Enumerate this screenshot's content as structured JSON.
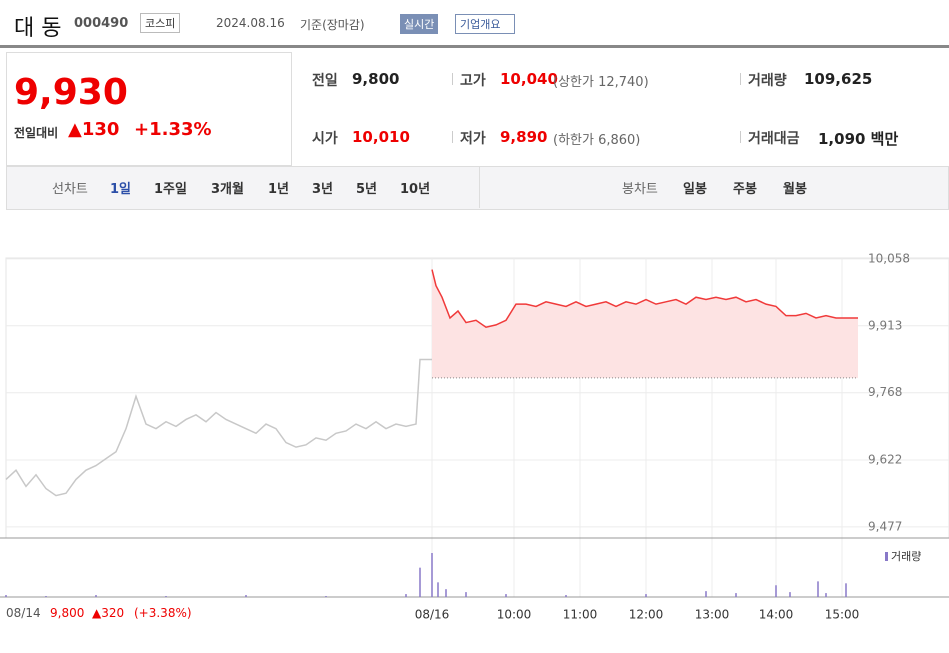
{
  "header": {
    "name": "대 동",
    "code": "000490",
    "market": "코스피",
    "date": "2024.08.16",
    "date_note": "기준(장마감)",
    "realtime": "실시간",
    "company": "기업개요"
  },
  "price": {
    "current": "9,930",
    "change_label": "전일대비",
    "change": "▲130",
    "change_pct": "+1.33%"
  },
  "info": [
    [
      "전일",
      "9,800"
    ],
    [
      "고가",
      "10,040",
      "(상한가 12,740)"
    ],
    [
      "거래량",
      "109,625"
    ],
    [
      "시가",
      "10,010"
    ],
    [
      "저가",
      "9,890",
      "(하한가 6,860)"
    ],
    [
      "거래대금",
      "1,090 백만"
    ]
  ],
  "tabs": {
    "line_label": "선차트",
    "line": [
      "1일",
      "1주일",
      "3개월",
      "1년",
      "3년",
      "5년",
      "10년"
    ],
    "candle_label": "봉차트",
    "candle": [
      "일봉",
      "주봉",
      "월봉"
    ]
  },
  "prev_day": {
    "date": "08/14",
    "close": "9,800",
    "change": "▲320",
    "pct": "(+3.38%)"
  },
  "chart_data": {
    "type": "line",
    "xlim": [
      0,
      426
    ],
    "xticks": [
      {
        "value": 213,
        "label": "08/16"
      },
      {
        "value": 254,
        "label": "10:00"
      },
      {
        "value": 287,
        "label": "11:00"
      },
      {
        "value": 320,
        "label": "12:00"
      },
      {
        "value": 353,
        "label": "13:00"
      },
      {
        "value": 385,
        "label": "14:00"
      },
      {
        "value": 418,
        "label": "15:00"
      }
    ],
    "ylim": [
      9453,
      10060
    ],
    "yticks": [
      {
        "value": 9477,
        "label": "9,477"
      },
      {
        "value": 9622,
        "label": "9,622"
      },
      {
        "value": 9768,
        "label": "9,768"
      },
      {
        "value": 9913,
        "label": "9,913"
      },
      {
        "value": 10058,
        "label": "10,058"
      }
    ],
    "grid": true,
    "reference": 9800,
    "series": [
      {
        "color": "#c8c8c8",
        "x": [
          0,
          5,
          10,
          15,
          20,
          25,
          30,
          35,
          40,
          45,
          50,
          55,
          60,
          65,
          70,
          75,
          80,
          85,
          90,
          95,
          100,
          105,
          110,
          115,
          120,
          125,
          130,
          135,
          140,
          145,
          150,
          155,
          160,
          165,
          170,
          175,
          180,
          185,
          190,
          195,
          200,
          205,
          207,
          213
        ],
        "values": [
          9580,
          9600,
          9565,
          9590,
          9560,
          9545,
          9550,
          9580,
          9600,
          9610,
          9625,
          9640,
          9690,
          9760,
          9700,
          9690,
          9705,
          9695,
          9710,
          9720,
          9705,
          9725,
          9710,
          9700,
          9690,
          9680,
          9700,
          9690,
          9660,
          9650,
          9655,
          9670,
          9665,
          9680,
          9685,
          9700,
          9690,
          9705,
          9690,
          9700,
          9695,
          9700,
          9840,
          9840
        ]
      },
      {
        "color": "#f03a3a",
        "fill": "#fde3e3",
        "x": [
          213,
          215,
          218,
          222,
          226,
          230,
          235,
          240,
          245,
          250,
          255,
          260,
          265,
          270,
          275,
          280,
          285,
          290,
          295,
          300,
          305,
          310,
          315,
          320,
          325,
          330,
          335,
          340,
          345,
          350,
          355,
          360,
          365,
          370,
          375,
          380,
          385,
          390,
          395,
          400,
          405,
          410,
          415,
          420,
          426
        ],
        "values": [
          10035,
          10000,
          9975,
          9930,
          9945,
          9920,
          9925,
          9910,
          9915,
          9925,
          9960,
          9960,
          9955,
          9965,
          9960,
          9955,
          9965,
          9955,
          9960,
          9965,
          9955,
          9965,
          9960,
          9970,
          9960,
          9965,
          9970,
          9960,
          9975,
          9970,
          9975,
          9970,
          9975,
          9965,
          9970,
          9960,
          9955,
          9935,
          9935,
          9940,
          9930,
          9935,
          9930,
          9930,
          9930
        ]
      }
    ],
    "volume": {
      "name": "거래량",
      "color": "#8878c8",
      "x": [
        0,
        20,
        45,
        80,
        120,
        160,
        200,
        207,
        213,
        216,
        220,
        230,
        250,
        280,
        320,
        350,
        365,
        385,
        392,
        406,
        410,
        420
      ],
      "values": [
        2,
        1,
        2,
        1,
        2,
        1,
        3,
        30,
        45,
        15,
        8,
        5,
        3,
        2,
        3,
        6,
        4,
        12,
        5,
        16,
        4,
        14
      ]
    }
  }
}
